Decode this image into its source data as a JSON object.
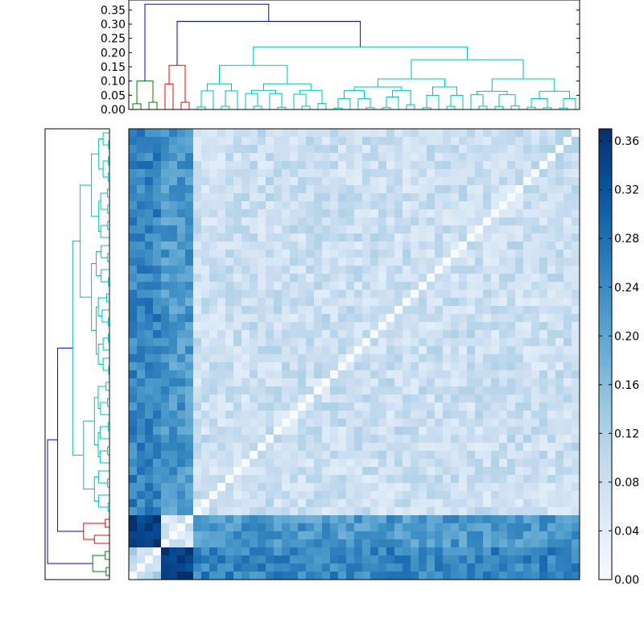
{
  "chart_data": [
    {
      "type": "dendrogram",
      "orientation": "top",
      "yticks": [
        "0.00",
        "0.05",
        "0.10",
        "0.15",
        "0.20",
        "0.25",
        "0.30",
        "0.35"
      ],
      "ylim": [
        0,
        0.385
      ],
      "leaf_count": 56,
      "link_colors": {
        "root": "#0000ff",
        "cluster_a": "#008000",
        "cluster_b": "#ff0000",
        "cluster_c": "#00bfbf"
      },
      "merge_heights": {
        "root": 0.37,
        "second": 0.31,
        "cyan_top": 0.22,
        "green_top": 0.1,
        "red_top": 0.155
      }
    },
    {
      "type": "dendrogram",
      "orientation": "left",
      "leaf_count": 56,
      "link_colors": {
        "root": "#0000ff",
        "cluster_a": "#008000",
        "cluster_b": "#ff0000",
        "cluster_c": "#00bfbf"
      }
    },
    {
      "type": "heatmap",
      "rows": 56,
      "cols": 56,
      "colormap": "Blues",
      "vmin": 0.0,
      "vmax": 0.37,
      "groups": {
        "green": [
          0,
          1,
          2,
          3
        ],
        "red": [
          4,
          5,
          6,
          7
        ],
        "cyan": [
          8,
          55
        ]
      },
      "block_means": {
        "green_green": 0.1,
        "green_red": 0.34,
        "green_cyan": 0.25,
        "red_red": 0.07,
        "red_cyan": 0.22,
        "cyan_cyan": 0.08
      },
      "diagonal": 0.0
    },
    {
      "type": "colorbar",
      "colormap": "Blues",
      "ticks": [
        "0.00",
        "0.04",
        "0.08",
        "0.12",
        "0.16",
        "0.20",
        "0.24",
        "0.28",
        "0.32",
        "0.36"
      ],
      "range": [
        0.0,
        0.37
      ]
    }
  ]
}
